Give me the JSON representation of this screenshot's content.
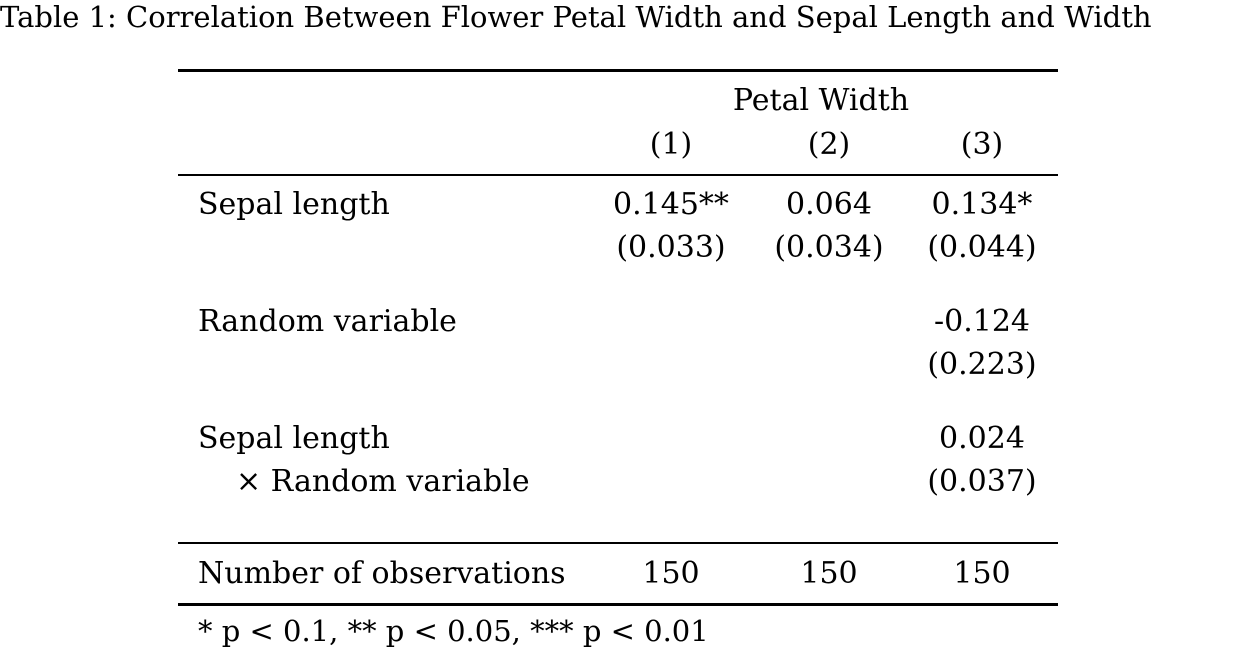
{
  "caption": "Table 1: Correlation Between Flower Petal Width and Sepal Length and Width",
  "header": {
    "dependent_variable": "Petal Width",
    "columns": [
      "(1)",
      "(2)",
      "(3)"
    ]
  },
  "rows": [
    {
      "label": "Sepal length",
      "label_line2": "",
      "coefficients": [
        "0.145**",
        "0.064",
        "0.134*"
      ],
      "std_errors": [
        "(0.033)",
        "(0.034)",
        "(0.044)"
      ]
    },
    {
      "label": "Random variable",
      "label_line2": "",
      "coefficients": [
        "",
        "",
        "-0.124"
      ],
      "std_errors": [
        "",
        "",
        "(0.223)"
      ]
    },
    {
      "label": "Sepal length",
      "label_line2": "× Random variable",
      "coefficients": [
        "",
        "",
        "0.024"
      ],
      "std_errors": [
        "",
        "",
        "(0.037)"
      ]
    }
  ],
  "summary": {
    "label": "Number of observations",
    "values": [
      "150",
      "150",
      "150"
    ]
  },
  "note": "* p < 0.1, ** p < 0.05, *** p < 0.01"
}
